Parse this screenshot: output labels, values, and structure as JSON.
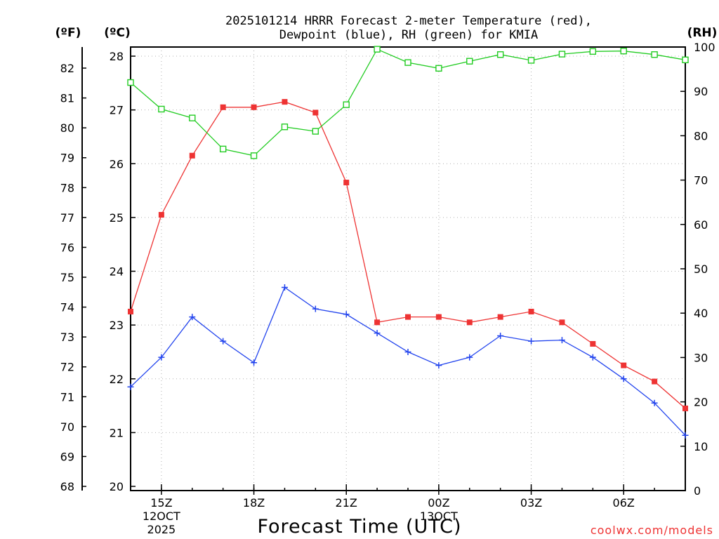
{
  "chart_data": {
    "type": "line",
    "title_lines": [
      "2025101214 HRRR Forecast 2-meter Temperature (red),",
      "Dewpoint (blue), RH (green) for KMIA"
    ],
    "units": {
      "left_outer": "(ºF)",
      "left_inner": "(ºC)",
      "right": "(RH)"
    },
    "xlabel": "Forecast Time (UTC)",
    "watermark": "coolwx.com/models",
    "colors": {
      "temperature": "#ee3333",
      "dewpoint": "#2244ee",
      "rh": "#22cc22"
    },
    "x_hours": [
      14,
      15,
      16,
      17,
      18,
      19,
      20,
      21,
      22,
      23,
      24,
      25,
      26,
      27,
      28,
      29,
      30,
      31,
      32
    ],
    "xlim": [
      14,
      32
    ],
    "x_ticks": [
      {
        "x": 15,
        "label": "15Z",
        "sub": [
          "12OCT",
          "2025"
        ]
      },
      {
        "x": 18,
        "label": "18Z",
        "sub": []
      },
      {
        "x": 21,
        "label": "21Z",
        "sub": []
      },
      {
        "x": 24,
        "label": "00Z",
        "sub": [
          "13OCT"
        ]
      },
      {
        "x": 27,
        "label": "03Z",
        "sub": []
      },
      {
        "x": 30,
        "label": "06Z",
        "sub": []
      }
    ],
    "y_celsius": {
      "ylim": [
        20,
        28.2
      ],
      "ticks": [
        20,
        21,
        22,
        23,
        24,
        25,
        26,
        27,
        28
      ]
    },
    "y_fahrenheit": {
      "ticks": [
        68,
        69,
        70,
        71,
        72,
        73,
        74,
        75,
        76,
        77,
        78,
        79,
        80,
        81,
        82
      ]
    },
    "y_rh": {
      "ylim": [
        0,
        100
      ],
      "ticks": [
        0,
        10,
        20,
        30,
        40,
        50,
        60,
        70,
        80,
        90,
        100
      ]
    },
    "series": [
      {
        "name": "Temperature",
        "axis": "celsius",
        "marker": "filled-square",
        "color_key": "temperature",
        "values": [
          23.25,
          25.05,
          26.15,
          27.05,
          27.05,
          27.15,
          26.95,
          25.65,
          23.05,
          23.15,
          23.15,
          23.05,
          23.15,
          23.25,
          23.05,
          22.65,
          22.25,
          21.95,
          21.45
        ]
      },
      {
        "name": "Dewpoint",
        "axis": "celsius",
        "marker": "plus",
        "color_key": "dewpoint",
        "values": [
          21.85,
          22.4,
          23.15,
          22.7,
          22.3,
          23.7,
          23.3,
          23.2,
          22.85,
          22.5,
          22.25,
          22.4,
          22.8,
          22.7,
          22.72,
          22.4,
          22.0,
          21.55,
          20.95
        ]
      },
      {
        "name": "RH",
        "axis": "rh",
        "marker": "open-square",
        "color_key": "rh",
        "values": [
          92,
          86,
          84,
          77,
          75.5,
          82,
          81,
          87,
          99.5,
          96.5,
          95.2,
          96.8,
          98.3,
          97,
          98.4,
          99,
          99.1,
          98.3,
          97.1
        ]
      }
    ]
  }
}
